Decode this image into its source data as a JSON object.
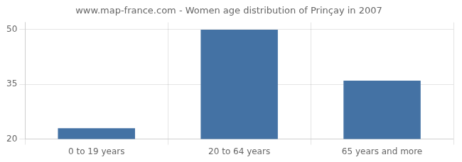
{
  "chart_data": {
    "type": "bar",
    "title": "www.map-france.com - Women age distribution of Prinçay in 2007",
    "categories": [
      "0 to 19 years",
      "20 to 64 years",
      "65 years and more"
    ],
    "values": [
      23,
      50,
      36
    ],
    "color": "#4472a4",
    "ylim": [
      20,
      52
    ],
    "yticks": [
      20,
      35,
      50
    ],
    "grid": true
  }
}
